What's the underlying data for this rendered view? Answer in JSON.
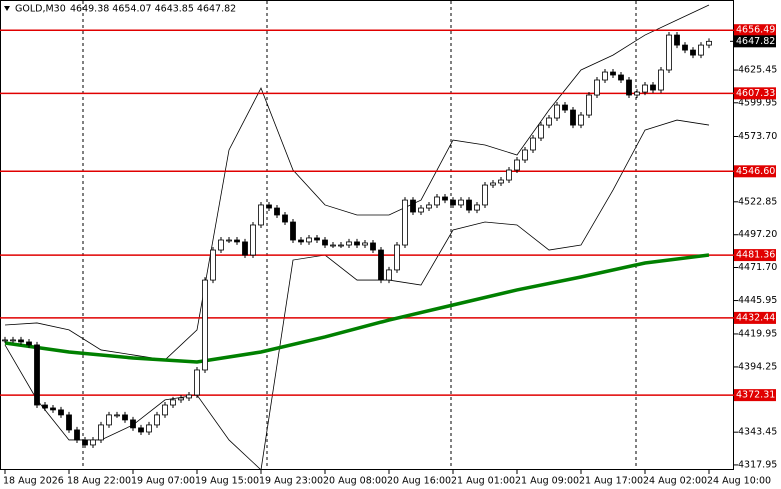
{
  "chart_data": {
    "type": "candlestick",
    "symbol": "GOLD,M30",
    "ohlc_header": "4649.38 4654.07 4643.85 4647.82",
    "categories": [
      "18 Aug 2026",
      null,
      null,
      null,
      null,
      null,
      null,
      null,
      "18 Aug 22:00",
      null,
      null,
      null,
      null,
      null,
      null,
      null,
      "19 Aug 07:00",
      null,
      null,
      null,
      null,
      null,
      null,
      null,
      "19 Aug 15:00",
      null,
      null,
      null,
      null,
      null,
      null,
      null,
      "19 Aug 23:00",
      null,
      null,
      null,
      null,
      null,
      null,
      null,
      "20 Aug 08:00",
      null,
      null,
      null,
      null,
      null,
      null,
      null,
      "20 Aug 16:00",
      null,
      null,
      null,
      null,
      null,
      null,
      null,
      "21 Aug 01:00",
      null,
      null,
      null,
      null,
      null,
      null,
      null,
      "21 Aug 09:00",
      null,
      null,
      null,
      null,
      null,
      null,
      null,
      "21 Aug 17:00",
      null,
      null,
      null,
      null,
      null,
      null,
      null,
      "24 Aug 02:00",
      null,
      null,
      null,
      null,
      null,
      null,
      null,
      "24 Aug 10:00"
    ],
    "close": [
      4415.3,
      4415.3,
      4413.7,
      4411.4,
      4364.6,
      4362.3,
      4360.8,
      4356.9,
      4345.2,
      4337.4,
      4333.5,
      4337.4,
      4349.1,
      4356.9,
      4356.9,
      4353.0,
      4346.8,
      4343.6,
      4349.1,
      4356.9,
      4364.6,
      4368.6,
      4370.1,
      4372.4,
      4391.9,
      4461.9,
      4485.3,
      4493.1,
      4493.1,
      4491.6,
      4481.4,
      4504.8,
      4520.4,
      4518.0,
      4512.6,
      4507.1,
      4493.1,
      4491.6,
      4494.7,
      4493.1,
      4489.2,
      4489.2,
      4489.2,
      4491.6,
      4489.2,
      4490.8,
      4485.3,
      4461.9,
      4469.8,
      4489.2,
      4524.2,
      4514.9,
      4518.0,
      4520.4,
      4526.6,
      4524.2,
      4520.4,
      4524.2,
      4516.4,
      4520.4,
      4535.9,
      4537.5,
      4539.8,
      4547.6,
      4555.4,
      4563.2,
      4572.5,
      4582.6,
      4588.1,
      4598.2,
      4594.3,
      4582.6,
      4590.4,
      4606.0,
      4617.7,
      4623.9,
      4621.6,
      4617.7,
      4606.0,
      4608.3,
      4613.8,
      4609.9,
      4625.5,
      4652.7,
      4644.9,
      4641.0,
      4637.1,
      4644.9,
      4647.82
    ],
    "ylim": [
      4314,
      4680
    ],
    "yticks": [
      {
        "value": 4625.45,
        "label": "4625.45"
      },
      {
        "value": 4599.95,
        "label": "4599.95"
      },
      {
        "value": 4573.7,
        "label": "4573.70"
      },
      {
        "value": 4522.85,
        "label": "4522.85"
      },
      {
        "value": 4497.2,
        "label": "4497.20"
      },
      {
        "value": 4471.7,
        "label": "4471.70"
      },
      {
        "value": 4445.95,
        "label": "4445.95"
      },
      {
        "value": 4419.95,
        "label": "4419.95"
      },
      {
        "value": 4394.25,
        "label": "4394.25"
      },
      {
        "value": 4343.45,
        "label": "4343.45"
      },
      {
        "value": 4317.95,
        "label": "4317.95"
      }
    ],
    "levels": [
      {
        "value": 4656.49,
        "label": "4656.49"
      },
      {
        "value": 4607.33,
        "label": "4607.33"
      },
      {
        "value": 4546.6,
        "label": "4546.60"
      },
      {
        "value": 4481.36,
        "label": "4481.36"
      },
      {
        "value": 4432.44,
        "label": "4432.44"
      },
      {
        "value": 4372.31,
        "label": "4372.31"
      }
    ],
    "level_color": "#e00000",
    "current_price": {
      "value": 4647.82,
      "label": "4647.82"
    },
    "ma": {
      "color": "#008000",
      "x": [
        0,
        8,
        16,
        24,
        32,
        40,
        48,
        56,
        64,
        72,
        80,
        88
      ],
      "values": [
        4412.9,
        4405.9,
        4401.2,
        4398.1,
        4405.9,
        4417.6,
        4430.8,
        4442.5,
        4454.2,
        4464.3,
        4475.2,
        4481.4
      ]
    },
    "bands": {
      "color": "#000000",
      "x": [
        0,
        4,
        8,
        12,
        16,
        20,
        24,
        28,
        32,
        36,
        40,
        44,
        48,
        52,
        56,
        60,
        64,
        68,
        72,
        76,
        80,
        84,
        88
      ],
      "upper": [
        4426.9,
        4428.5,
        4423.1,
        4407.5,
        4403.6,
        4399.7,
        4423.1,
        4563.2,
        4611.4,
        4547.6,
        4520.4,
        4512.6,
        4512.6,
        4524.2,
        4570.9,
        4567.1,
        4559.3,
        4594.3,
        4625.5,
        4637.1,
        4652.7,
        4664.4,
        4676.1
      ],
      "lower": [
        4411.4,
        4368.6,
        4337.4,
        4337.4,
        4349.1,
        4368.6,
        4372.4,
        4337.4,
        4314.1,
        4477.5,
        4481.4,
        4461.9,
        4461.9,
        4458.0,
        4500.9,
        4507.1,
        4504.8,
        4485.3,
        4489.2,
        4532.0,
        4578.7,
        4586.5,
        4582.6
      ]
    }
  }
}
